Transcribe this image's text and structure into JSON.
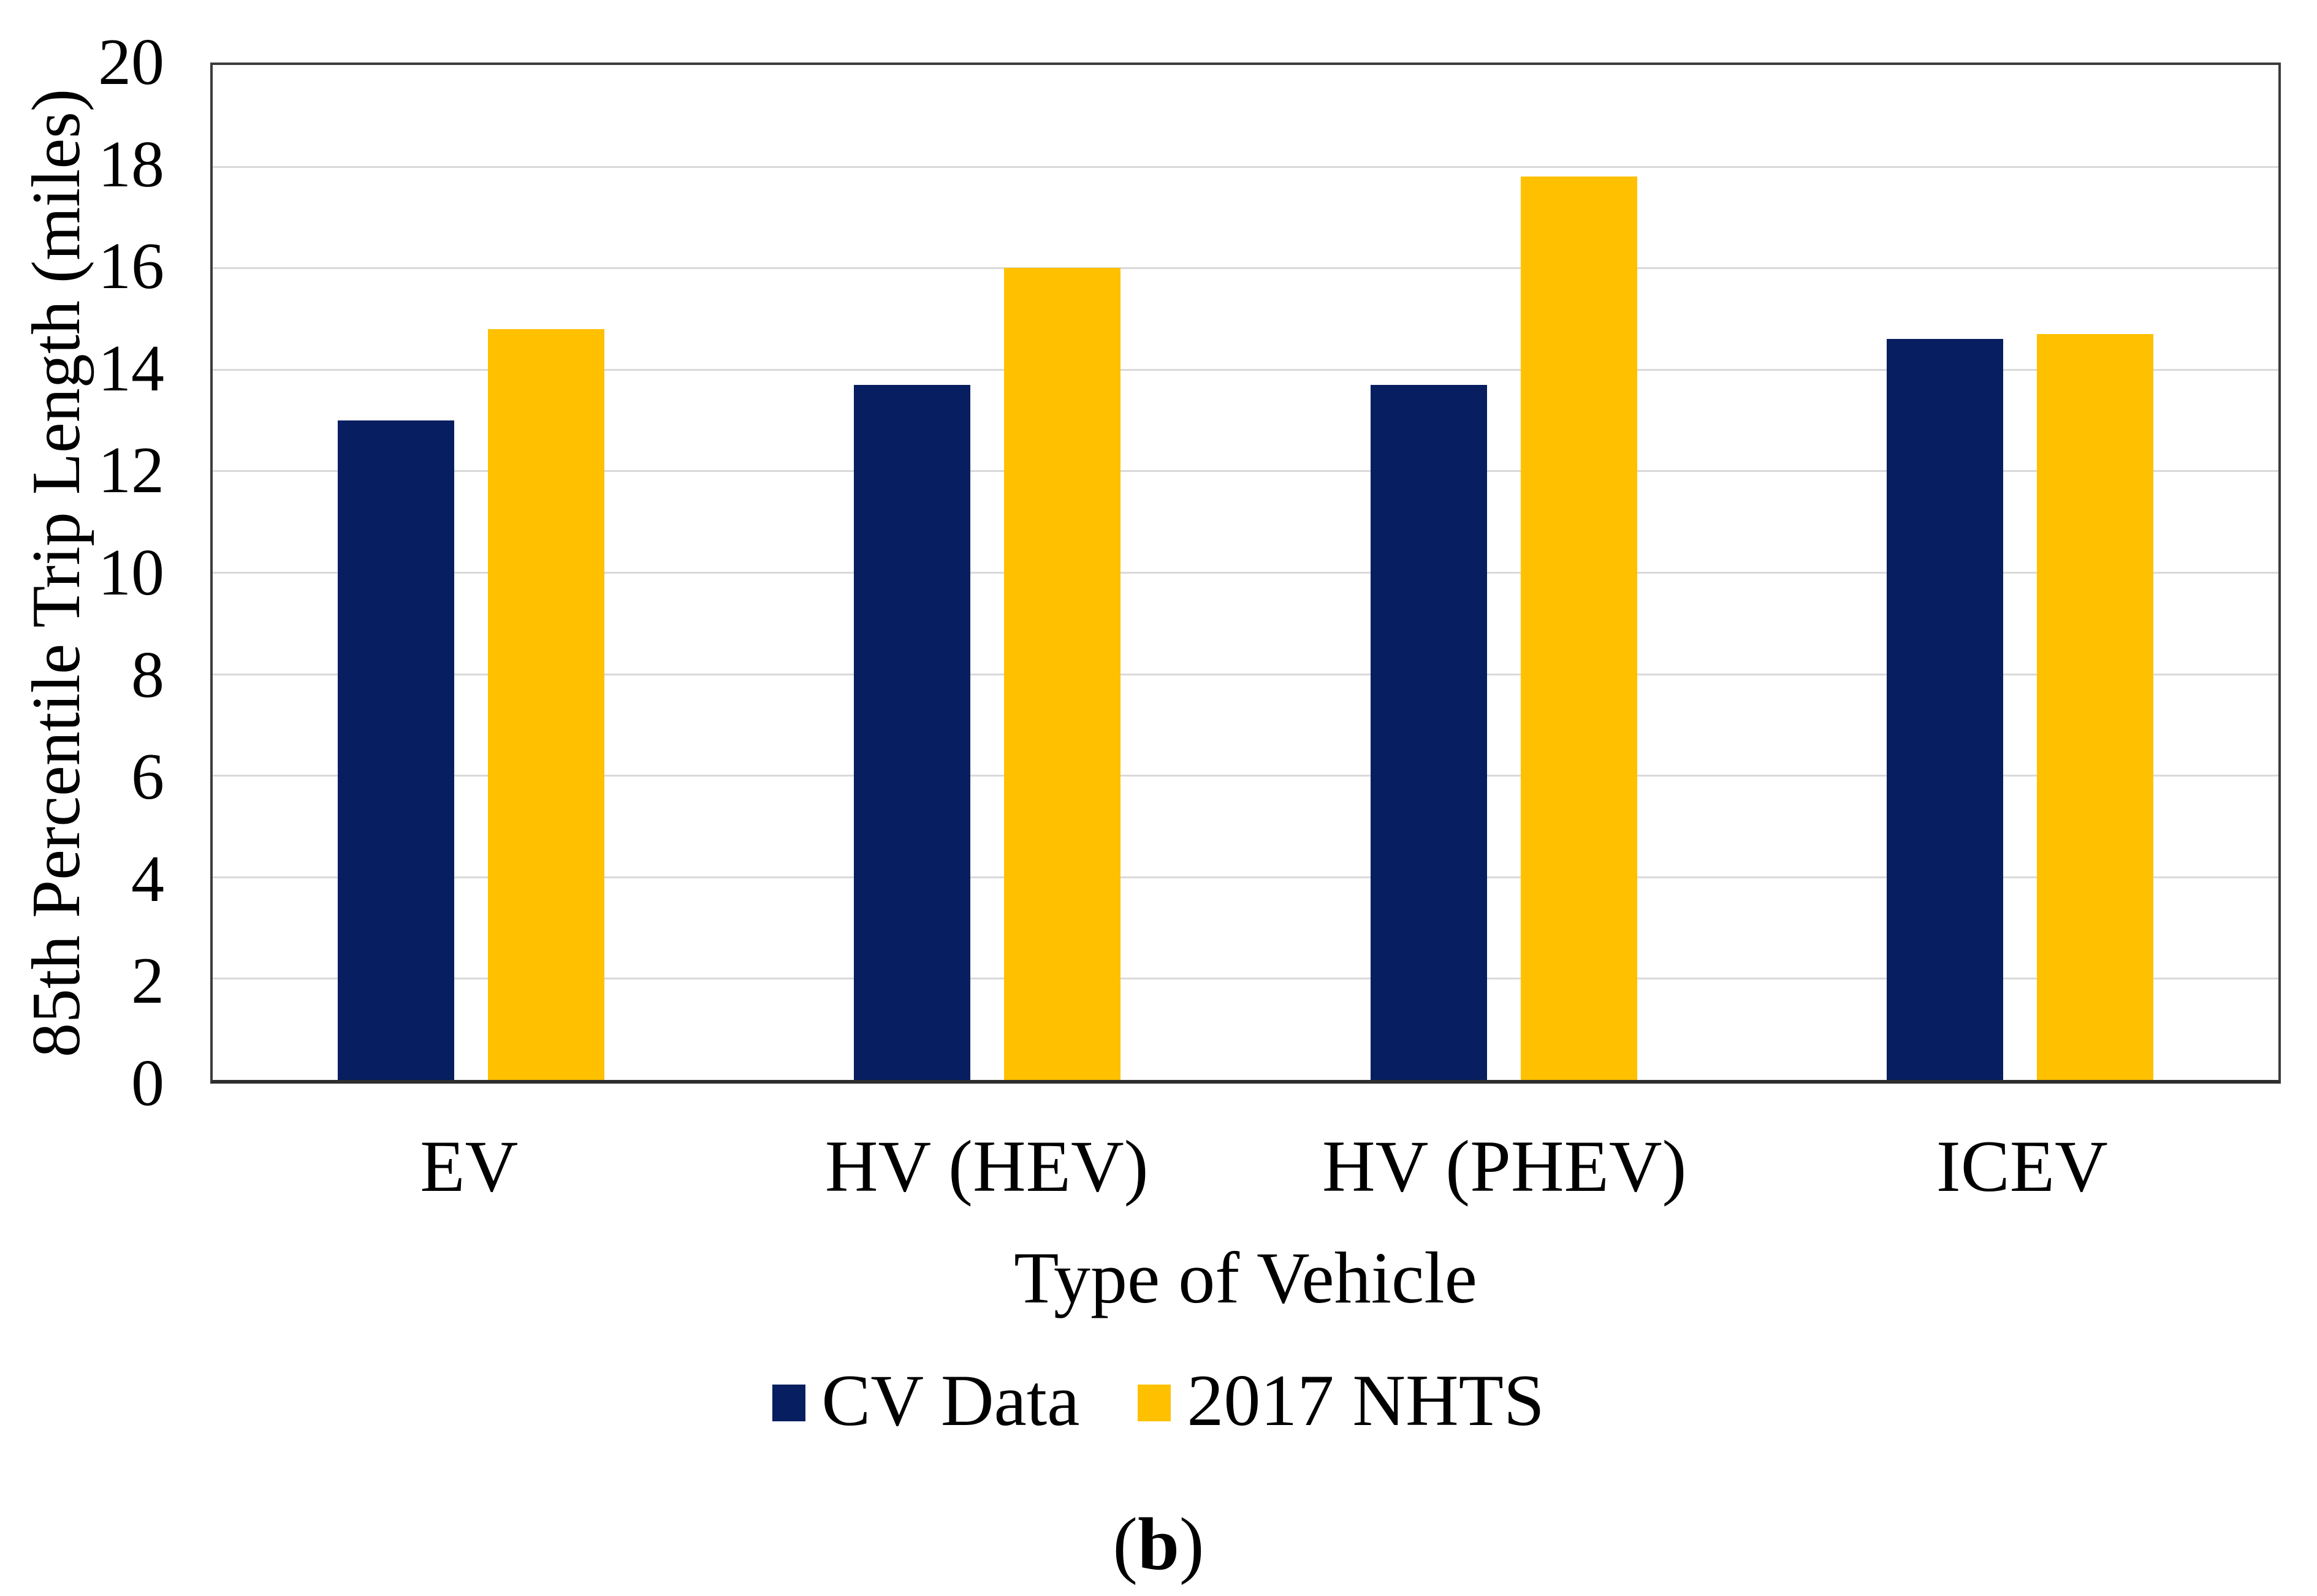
{
  "figure": {
    "caption": {
      "open": "(",
      "letter": "b",
      "close": ")"
    }
  },
  "chart_data": {
    "type": "bar",
    "title": "",
    "categories": [
      "EV",
      "HV (HEV)",
      "HV (PHEV)",
      "ICEV"
    ],
    "series": [
      {
        "name": "CV Data",
        "color": "#071F60",
        "values": [
          13.0,
          13.7,
          13.7,
          14.6
        ]
      },
      {
        "name": "2017 NHTS",
        "color": "#FFC000",
        "values": [
          14.8,
          16.0,
          17.8,
          14.7
        ]
      }
    ],
    "xlabel": "Type of Vehicle",
    "ylabel": "85th Percentile Trip Length (miles)",
    "ylim": [
      0,
      20
    ],
    "yticks": [
      0,
      2,
      4,
      6,
      8,
      10,
      12,
      14,
      16,
      18,
      20
    ],
    "grid": "horizontal",
    "gridline_color": "#D9D9D9",
    "axis_color": "#3B3B3B",
    "legend_position": "bottom"
  }
}
